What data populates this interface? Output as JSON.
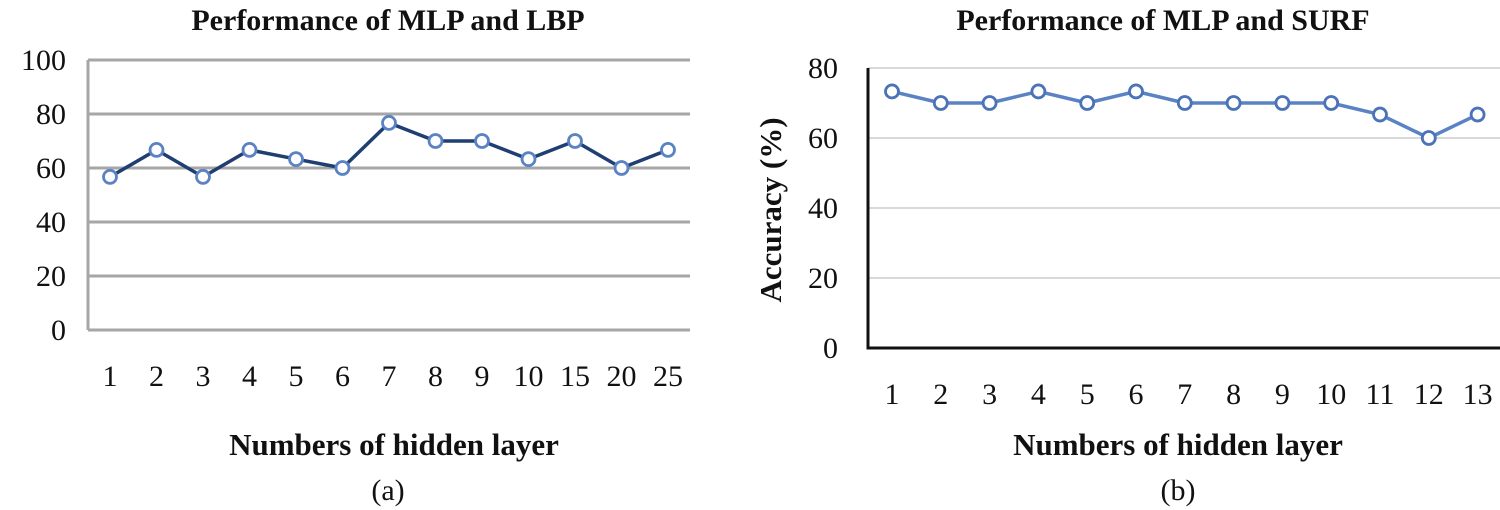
{
  "chart_data": [
    {
      "type": "line",
      "title": "Performance of MLP and LBP",
      "xlabel": "Numbers of hidden layer",
      "ylabel": "",
      "caption": "(a)",
      "categories": [
        "1",
        "2",
        "3",
        "4",
        "5",
        "6",
        "7",
        "8",
        "9",
        "10",
        "15",
        "20",
        "25"
      ],
      "series": [
        {
          "name": "MLP and LBP",
          "values": [
            56.7,
            66.7,
            56.7,
            66.7,
            63.3,
            60,
            76.7,
            70,
            70,
            63.3,
            70,
            60,
            66.7
          ]
        }
      ],
      "ylim": [
        0,
        100
      ],
      "yticks": [
        "0",
        "20",
        "40",
        "60",
        "80",
        "100"
      ],
      "ytick_values": [
        0,
        20,
        40,
        60,
        80,
        100
      ],
      "grid": true,
      "colors": {
        "line": "#1f3f73",
        "marker": "#5b83c4",
        "grid": "#a6a6a6",
        "axis": "#a6a6a6"
      }
    },
    {
      "type": "line",
      "title": "Performance of MLP and SURF",
      "xlabel": "Numbers of hidden layer",
      "ylabel": "Accuracy (%)",
      "caption": "(b)",
      "categories": [
        "1",
        "2",
        "3",
        "4",
        "5",
        "6",
        "7",
        "8",
        "9",
        "10",
        "11",
        "12",
        "13"
      ],
      "series": [
        {
          "name": "MLP and SURF",
          "values": [
            73.3,
            70,
            70,
            73.3,
            70,
            73.3,
            70,
            70,
            70,
            70,
            66.7,
            60,
            66.7
          ]
        }
      ],
      "ylim": [
        0,
        80
      ],
      "yticks": [
        "0",
        "20",
        "40",
        "60",
        "80"
      ],
      "ytick_values": [
        0,
        20,
        40,
        60,
        80
      ],
      "grid": true,
      "colors": {
        "line": "#5b83c4",
        "marker": "#4a73b8",
        "grid": "#d9d9d9",
        "axis": "#111111"
      }
    }
  ]
}
